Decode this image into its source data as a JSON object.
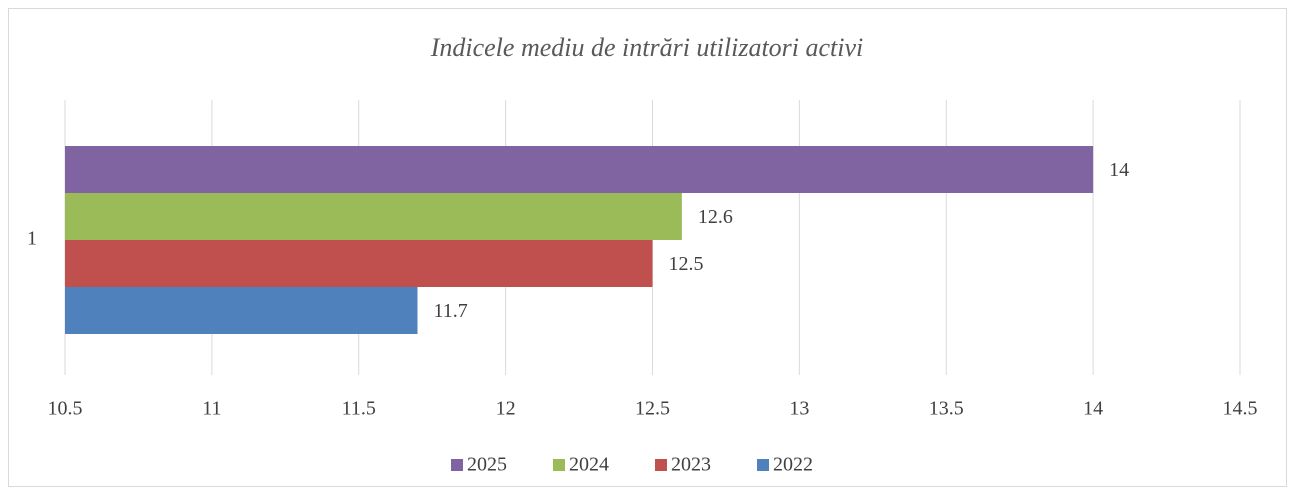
{
  "chart_data": {
    "type": "bar",
    "orientation": "horizontal",
    "title": "Indicele mediu de intrări utilizatori activi",
    "categories": [
      "1"
    ],
    "series": [
      {
        "name": "2022",
        "color": "#4f81bd",
        "values": [
          11.7
        ]
      },
      {
        "name": "2023",
        "color": "#c0504d",
        "values": [
          12.5
        ]
      },
      {
        "name": "2024",
        "color": "#9bbb59",
        "values": [
          12.6
        ]
      },
      {
        "name": "2025",
        "color": "#8064a2",
        "values": [
          14
        ]
      }
    ],
    "xlim": [
      10.5,
      14.5
    ],
    "xticks": [
      10.5,
      11,
      11.5,
      12,
      12.5,
      13,
      13.5,
      14,
      14.5
    ],
    "grid": true,
    "legend": "bottom",
    "data_labels": true
  }
}
